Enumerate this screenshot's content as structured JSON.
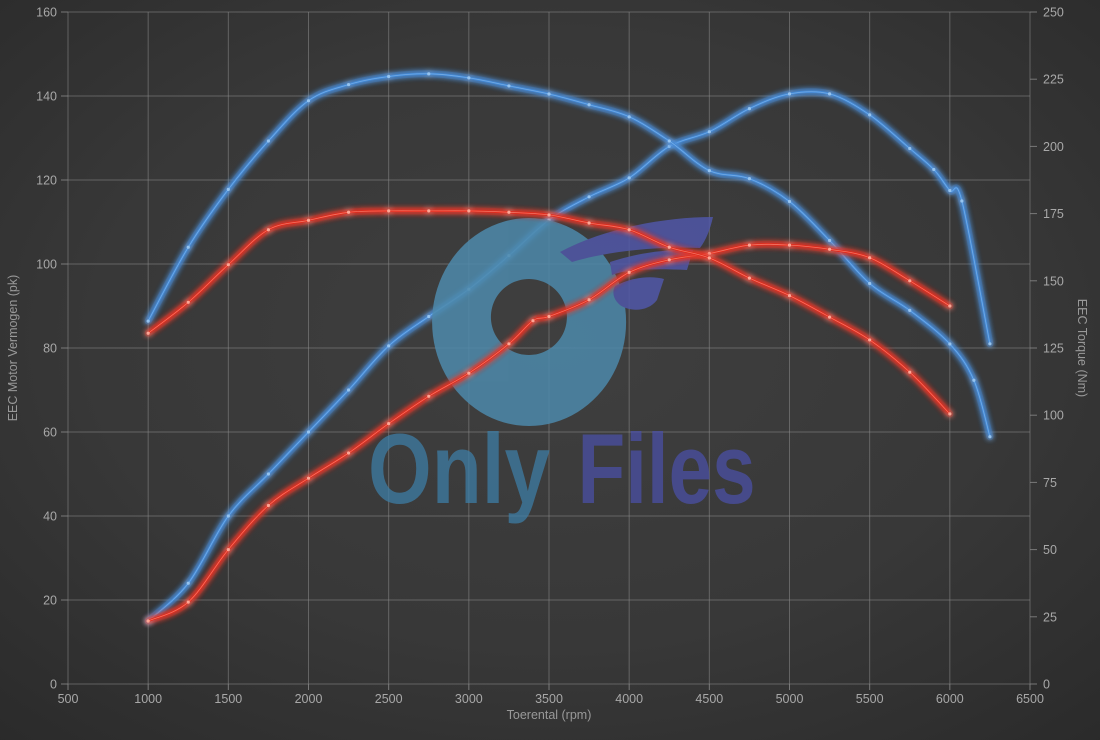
{
  "chart_data": {
    "type": "line",
    "title": "",
    "x_axis": {
      "label": "Toerental (rpm)",
      "min": 500,
      "max": 6500,
      "ticks": [
        500,
        1000,
        1500,
        2000,
        2500,
        3000,
        3500,
        4000,
        4500,
        5000,
        5500,
        6000,
        6500
      ],
      "grid": true
    },
    "y_left": {
      "label": "EEC Motor Vermogen (pk)",
      "min": 0,
      "max": 160,
      "ticks": [
        0,
        20,
        40,
        60,
        80,
        100,
        120,
        140,
        160
      ],
      "grid": true
    },
    "y_right": {
      "label": "EEC Torque (Nm)",
      "min": 0,
      "max": 250,
      "ticks": [
        0,
        25,
        50,
        75,
        100,
        125,
        150,
        175,
        200,
        225,
        250
      ],
      "grid": false
    },
    "legend": "none",
    "series": [
      {
        "name": "blue-power",
        "axis": "left",
        "layer": "under",
        "color": "#4389d6",
        "marker_color": "#9cc9f2",
        "peak": 141,
        "x": [
          1000,
          1250,
          1500,
          1750,
          2000,
          2250,
          2500,
          2750,
          3000,
          3250,
          3500,
          3750,
          4000,
          4250,
          4500,
          4750,
          5000,
          5250,
          5500,
          5750,
          5900,
          6000,
          6075,
          6250
        ],
        "values": [
          15,
          24,
          40,
          50,
          60,
          70,
          80.5,
          87.5,
          94,
          102,
          110.5,
          116,
          120.5,
          128,
          131.5,
          137,
          140.5,
          140.5,
          135.5,
          127.5,
          122.5,
          117.5,
          115,
          81
        ]
      },
      {
        "name": "blue-torque",
        "axis": "right",
        "layer": "under",
        "color": "#4389d6",
        "marker_color": "#9cc9f2",
        "peak": 227,
        "x": [
          1000,
          1250,
          1500,
          1750,
          2000,
          2250,
          2500,
          2750,
          3000,
          3250,
          3500,
          3750,
          4000,
          4250,
          4500,
          4750,
          5000,
          5250,
          5500,
          5750,
          6000,
          6150,
          6250
        ],
        "values": [
          135,
          162.5,
          184,
          202,
          217,
          223,
          226,
          227,
          225.5,
          222.5,
          219.5,
          215.5,
          211,
          202,
          191,
          188,
          179.5,
          165,
          149,
          139,
          126.5,
          113,
          92
        ]
      },
      {
        "name": "red-power",
        "axis": "left",
        "layer": "over",
        "color": "#e22b1c",
        "marker_color": "#ffb0a0",
        "peak": 104.5,
        "x": [
          1000,
          1250,
          1500,
          1750,
          2000,
          2250,
          2500,
          2750,
          3000,
          3250,
          3400,
          3500,
          3750,
          4000,
          4250,
          4500,
          4750,
          5000,
          5250,
          5500,
          5750,
          6000
        ],
        "values": [
          15,
          19.5,
          32,
          42.5,
          49,
          55,
          62,
          68.5,
          74,
          81,
          86.5,
          87.5,
          91.5,
          98,
          101,
          102.5,
          104.5,
          104.5,
          103.5,
          101.5,
          96,
          90
        ]
      },
      {
        "name": "red-torque",
        "axis": "right",
        "layer": "over",
        "color": "#e22b1c",
        "marker_color": "#ffb0a0",
        "peak": 176,
        "x": [
          1000,
          1250,
          1500,
          1750,
          2000,
          2250,
          2500,
          2750,
          3000,
          3250,
          3500,
          3750,
          4000,
          4250,
          4500,
          4750,
          5000,
          5250,
          5500,
          5750,
          6000
        ],
        "values": [
          130.5,
          142,
          156,
          169,
          172.5,
          175.5,
          176,
          176,
          176,
          175.5,
          174.5,
          171.5,
          169,
          162.5,
          158.5,
          151,
          144.5,
          136.5,
          128,
          116,
          100.5
        ]
      }
    ],
    "colors": {
      "background_center": "#3e3e3e",
      "background_edge": "#2a2a2a",
      "grid_line": "#8a8a8a",
      "tick_text": "#a8a8a8",
      "axis_title_text": "#999999"
    }
  },
  "watermark": {
    "text_primary": "Only",
    "text_secondary": "Files",
    "color_primary": "#3e7ea6",
    "color_secondary": "#4a50a6",
    "logo_ring_color": "#4d89ab",
    "logo_wing_color": "#5057a8"
  }
}
